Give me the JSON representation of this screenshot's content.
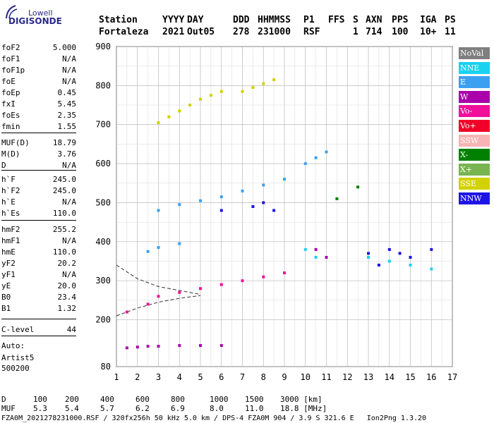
{
  "logo": {
    "top": "Lowell",
    "bottom": "DIGISONDE"
  },
  "header": {
    "labels": [
      "Station",
      "YYYY",
      "DAY",
      "DDD",
      "HHMMSS",
      "P1",
      "FFS",
      "S",
      "AXN",
      "PPS",
      "IGA",
      "PS"
    ],
    "values": [
      "Fortaleza",
      "2021",
      "Out05",
      "278",
      "231000",
      "RSF",
      "1",
      "714",
      "100",
      "10+",
      "11"
    ]
  },
  "params": [
    {
      "name": "foF2",
      "value": "5.000"
    },
    {
      "name": "foF1",
      "value": "N/A"
    },
    {
      "name": "foF1p",
      "value": "N/A"
    },
    {
      "name": "foE",
      "value": "N/A"
    },
    {
      "name": "foEp",
      "value": "0.45"
    },
    {
      "name": "fxI",
      "value": "5.45"
    },
    {
      "name": "foEs",
      "value": "2.35"
    },
    {
      "name": "fmin",
      "value": "1.55"
    },
    {
      "name": "MUF(D)",
      "value": "18.79"
    },
    {
      "name": "M(D)",
      "value": "3.76"
    },
    {
      "name": "D",
      "value": "N/A"
    },
    {
      "name": "h`F",
      "value": "245.0"
    },
    {
      "name": "h`F2",
      "value": "245.0"
    },
    {
      "name": "h`E",
      "value": "N/A"
    },
    {
      "name": "h`Es",
      "value": "110.0"
    },
    {
      "name": "hmF2",
      "value": "255.2"
    },
    {
      "name": "hmF1",
      "value": "N/A"
    },
    {
      "name": "hmE",
      "value": "110.0"
    },
    {
      "name": "yF2",
      "value": "20.2"
    },
    {
      "name": "yF1",
      "value": "N/A"
    },
    {
      "name": "yE",
      "value": "20.0"
    },
    {
      "name": "B0",
      "value": "23.4"
    },
    {
      "name": "B1",
      "value": "1.32"
    },
    {
      "name": "C-level",
      "value": "44"
    }
  ],
  "footer": {
    "auto": "Auto:",
    "artist": "Artist5",
    "code": "500200"
  },
  "legend": [
    {
      "label": "NoVal",
      "color": "#7f7f7f"
    },
    {
      "label": "NNE",
      "color": "#19d2f0"
    },
    {
      "label": "E",
      "color": "#3ca0f0"
    },
    {
      "label": "W",
      "color": "#aa00aa"
    },
    {
      "label": "Vo-",
      "color": "#f0109a"
    },
    {
      "label": "Vo+",
      "color": "#f00028"
    },
    {
      "label": "SSW",
      "color": "#f8b4b4"
    },
    {
      "label": "X-",
      "color": "#008000"
    },
    {
      "label": "X+",
      "color": "#78b450"
    },
    {
      "label": "SSE",
      "color": "#d2d200"
    },
    {
      "label": "NNW",
      "color": "#1e14e6"
    }
  ],
  "muf_table": {
    "d_label": "D",
    "d_values": [
      "100",
      "200",
      "400",
      "600",
      "800",
      "1000",
      "1500",
      "3000 [km]"
    ],
    "muf_label": "MUF",
    "muf_values": [
      "5.3",
      "5.4",
      "5.7",
      "6.2",
      "6.9",
      "8.0",
      "11.0",
      "18.8 [MHz]"
    ]
  },
  "bottom_line": "FZA0M_2021278231000.RSF / 320fx256h 50 kHz 5.0 km / DPS-4 FZA0M 904 / 3.9 S 321.6 E   Ion2Png 1.3.20",
  "chart_data": {
    "type": "scatter",
    "title": "",
    "xlabel": "",
    "ylabel": "",
    "xlim": [
      1,
      17
    ],
    "ylim": [
      80,
      900
    ],
    "x_ticks": [
      1,
      2,
      3,
      4,
      5,
      6,
      7,
      8,
      9,
      10,
      11,
      12,
      13,
      14,
      15,
      16,
      17
    ],
    "y_ticks": [
      80,
      200,
      300,
      400,
      500,
      600,
      700,
      800,
      900
    ],
    "grid": true,
    "legend_placement": "right",
    "series": [
      {
        "name": "SSE",
        "color": "#d2d200",
        "points": [
          [
            3.0,
            705
          ],
          [
            3.5,
            720
          ],
          [
            4.0,
            735
          ],
          [
            4.5,
            750
          ],
          [
            5.0,
            765
          ],
          [
            5.5,
            775
          ],
          [
            6.0,
            785
          ],
          [
            7.0,
            785
          ],
          [
            7.5,
            795
          ],
          [
            8.0,
            805
          ],
          [
            8.5,
            815
          ]
        ]
      },
      {
        "name": "E",
        "color": "#3ca0f0",
        "points": [
          [
            3.0,
            480
          ],
          [
            4.0,
            495
          ],
          [
            5.0,
            505
          ],
          [
            6.0,
            515
          ],
          [
            7.0,
            530
          ],
          [
            8.0,
            545
          ],
          [
            9.0,
            560
          ],
          [
            10.0,
            600
          ],
          [
            10.5,
            615
          ],
          [
            11.0,
            630
          ],
          [
            2.5,
            375
          ],
          [
            3.0,
            385
          ],
          [
            4.0,
            395
          ]
        ]
      },
      {
        "name": "NNW",
        "color": "#1e14e6",
        "points": [
          [
            6.0,
            480
          ],
          [
            7.5,
            490
          ],
          [
            8.0,
            500
          ],
          [
            8.5,
            480
          ],
          [
            13.0,
            370
          ],
          [
            14.0,
            380
          ],
          [
            14.5,
            370
          ],
          [
            15.0,
            360
          ],
          [
            16.0,
            380
          ],
          [
            13.5,
            340
          ]
        ]
      },
      {
        "name": "Vo-",
        "color": "#f0109a",
        "points": [
          [
            2.5,
            240
          ],
          [
            3.0,
            260
          ],
          [
            4.0,
            270
          ],
          [
            5.0,
            280
          ],
          [
            6.0,
            290
          ],
          [
            7.0,
            300
          ],
          [
            8.0,
            310
          ],
          [
            9.0,
            320
          ],
          [
            1.5,
            220
          ]
        ]
      },
      {
        "name": "W",
        "color": "#aa00aa",
        "points": [
          [
            1.5,
            128
          ],
          [
            2.0,
            130
          ],
          [
            2.5,
            132
          ],
          [
            3.0,
            132
          ],
          [
            4.0,
            134
          ],
          [
            5.0,
            134
          ],
          [
            6.0,
            134
          ],
          [
            10.5,
            380
          ],
          [
            11.0,
            360
          ]
        ]
      },
      {
        "name": "X-",
        "color": "#008000",
        "points": [
          [
            11.5,
            510
          ],
          [
            12.5,
            540
          ]
        ]
      },
      {
        "name": "NNE",
        "color": "#19d2f0",
        "points": [
          [
            10.0,
            380
          ],
          [
            10.5,
            360
          ],
          [
            13.0,
            360
          ],
          [
            14.0,
            350
          ],
          [
            15.0,
            340
          ],
          [
            16.0,
            330
          ]
        ]
      }
    ]
  }
}
